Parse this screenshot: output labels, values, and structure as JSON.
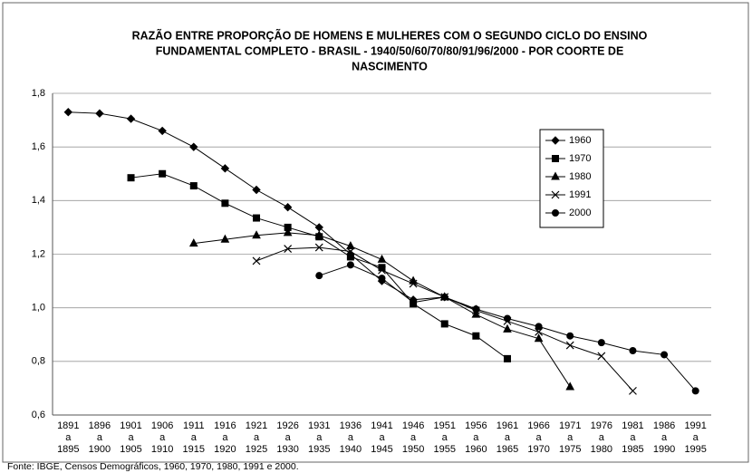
{
  "chart_data": {
    "type": "line",
    "title": [
      "RAZÃO ENTRE PROPORÇÃO DE HOMENS E MULHERES COM O SEGUNDO CICLO DO ENSINO",
      "FUNDAMENTAL  COMPLETO  - BRASIL - 1940/50/60/70/80/91/96/2000 - POR COORTE DE",
      "NASCIMENTO"
    ],
    "source": "Fonte: IBGE, Censos Demográficos, 1960, 1970, 1980, 1991 e 2000.",
    "categories": [
      [
        "1891",
        "a",
        "1895"
      ],
      [
        "1896",
        "a",
        "1900"
      ],
      [
        "1901",
        "a",
        "1905"
      ],
      [
        "1906",
        "a",
        "1910"
      ],
      [
        "1911",
        "a",
        "1915"
      ],
      [
        "1916",
        "a",
        "1920"
      ],
      [
        "1921",
        "a",
        "1925"
      ],
      [
        "1926",
        "a",
        "1930"
      ],
      [
        "1931",
        "a",
        "1935"
      ],
      [
        "1936",
        "a",
        "1940"
      ],
      [
        "1941",
        "a",
        "1945"
      ],
      [
        "1946",
        "a",
        "1950"
      ],
      [
        "1951",
        "a",
        "1955"
      ],
      [
        "1956",
        "a",
        "1960"
      ],
      [
        "1961",
        "a",
        "1965"
      ],
      [
        "1966",
        "a",
        "1970"
      ],
      [
        "1971",
        "a",
        "1975"
      ],
      [
        "1976",
        "a",
        "1980"
      ],
      [
        "1981",
        "a",
        "1985"
      ],
      [
        "1986",
        "a",
        "1990"
      ],
      [
        "1991",
        "a",
        "1995"
      ]
    ],
    "series": [
      {
        "name": "1960",
        "color": "#000000",
        "marker": "diamond",
        "values": [
          1.73,
          1.725,
          1.705,
          1.66,
          1.6,
          1.52,
          1.44,
          1.375,
          1.3,
          1.2,
          1.1,
          1.03,
          1.04,
          0.995,
          null,
          null,
          null,
          null,
          null,
          null,
          null
        ]
      },
      {
        "name": "1970",
        "color": "#000000",
        "marker": "square",
        "values": [
          null,
          null,
          1.485,
          1.5,
          1.455,
          1.39,
          1.335,
          1.3,
          1.265,
          1.19,
          1.15,
          1.015,
          0.94,
          0.895,
          0.81,
          null,
          null,
          null,
          null,
          null,
          null
        ]
      },
      {
        "name": "1980",
        "color": "#000000",
        "marker": "triangle",
        "values": [
          null,
          null,
          null,
          null,
          1.24,
          1.255,
          1.27,
          1.28,
          1.27,
          1.23,
          1.18,
          1.1,
          1.04,
          0.975,
          0.92,
          0.885,
          0.705,
          null,
          null,
          null,
          null
        ]
      },
      {
        "name": "1991",
        "color": "#000000",
        "marker": "x",
        "values": [
          null,
          null,
          null,
          null,
          null,
          null,
          1.175,
          1.22,
          1.225,
          1.21,
          1.14,
          1.09,
          1.04,
          0.99,
          0.95,
          0.91,
          0.86,
          0.82,
          0.69,
          null,
          null
        ]
      },
      {
        "name": "2000",
        "color": "#000000",
        "marker": "circle",
        "values": [
          null,
          null,
          null,
          null,
          null,
          null,
          null,
          null,
          1.12,
          1.16,
          1.11,
          1.02,
          1.04,
          0.995,
          0.96,
          0.93,
          0.895,
          0.87,
          0.84,
          0.825,
          0.69
        ]
      }
    ],
    "ylim": [
      0.6,
      1.8
    ],
    "yticks": [
      {
        "value": 0.6,
        "label": "0,6"
      },
      {
        "value": 0.8,
        "label": "0,8"
      },
      {
        "value": 1.0,
        "label": "1,0"
      },
      {
        "value": 1.2,
        "label": "1,2"
      },
      {
        "value": 1.4,
        "label": "1,4"
      },
      {
        "value": 1.6,
        "label": "1,6"
      },
      {
        "value": 1.8,
        "label": "1,8"
      }
    ],
    "grid": true,
    "legend": "upper right"
  }
}
